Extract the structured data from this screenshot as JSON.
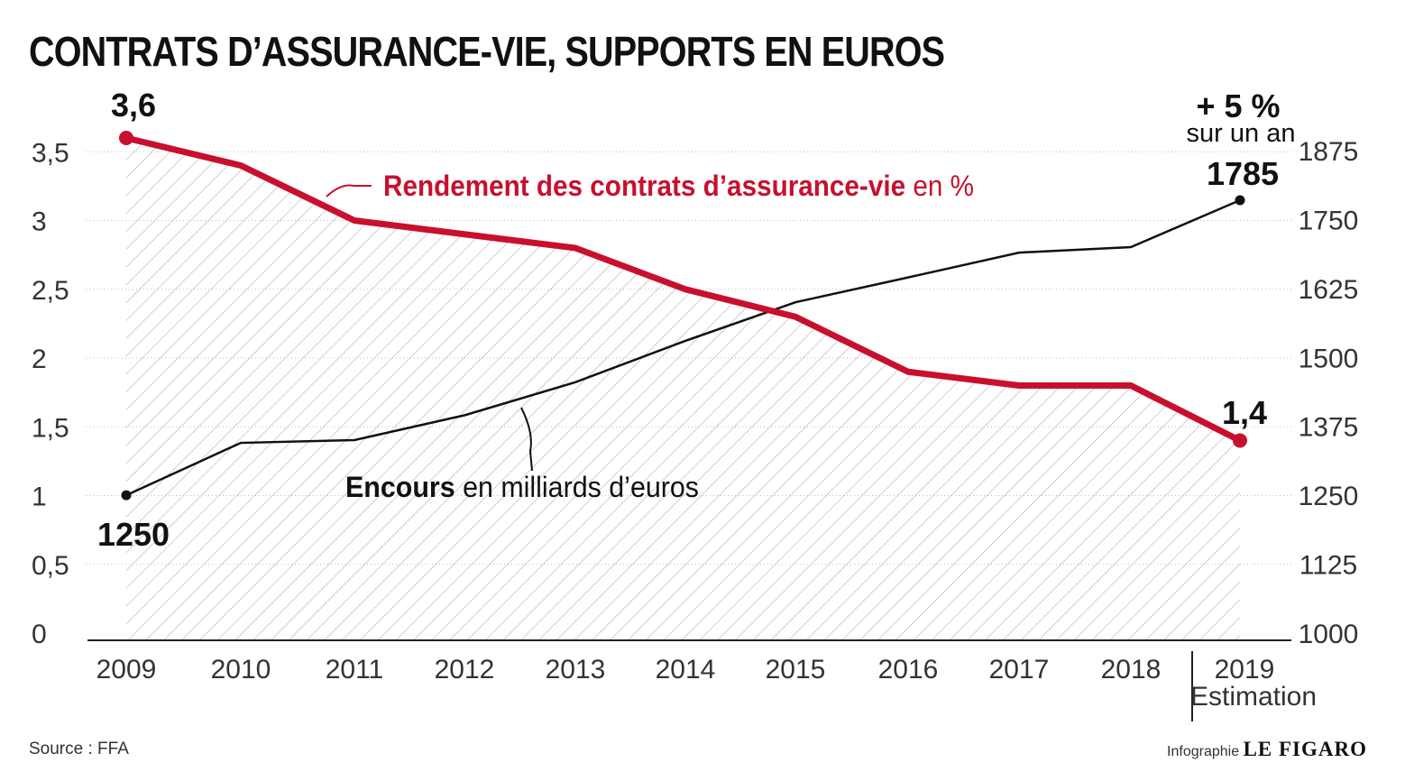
{
  "title": "CONTRATS D’ASSURANCE-VIE, SUPPORTS EN EUROS",
  "source": "Source : FFA",
  "credit": {
    "prefix": "Infographie",
    "brand": "LE FIGARO"
  },
  "colors": {
    "rendement": "#c8102e",
    "encours": "#111111",
    "hatch": "#b5b5b5",
    "grid": "#bdbdbd"
  },
  "chart_data": {
    "type": "line",
    "categories": [
      "2009",
      "2010",
      "2011",
      "2012",
      "2013",
      "2014",
      "2015",
      "2016",
      "2017",
      "2018",
      "2019"
    ],
    "category_notes": {
      "2019": "Estimation"
    },
    "y_left": {
      "ticks": [
        "0",
        "0,5",
        "1",
        "1,5",
        "2",
        "2,5",
        "3",
        "3,5"
      ],
      "ylim": [
        0,
        3.6
      ]
    },
    "y_right": {
      "ticks": [
        "1000",
        "1125",
        "1250",
        "1375",
        "1500",
        "1625",
        "1750",
        "1875"
      ],
      "ylim": [
        1000,
        1875
      ]
    },
    "grid": true,
    "series": [
      {
        "label_main": "Rendement des contrats d’assurance-vie",
        "label_unit": "en %",
        "axis": "left",
        "style": "thick red line with hatched area",
        "values": [
          3.6,
          3.4,
          3.0,
          2.9,
          2.8,
          2.5,
          2.3,
          1.9,
          1.8,
          1.8,
          1.4
        ]
      },
      {
        "label_main": "Encours",
        "label_unit": "en milliards d’euros",
        "axis": "right",
        "style": "thin black line",
        "values": [
          1250,
          1345,
          1350,
          1395,
          1455,
          1530,
          1600,
          1645,
          1690,
          1700,
          1785
        ]
      }
    ],
    "annotations": {
      "rendement_start": "3,6",
      "rendement_end": "1,4",
      "encours_start": "1250",
      "encours_end": "1785",
      "change": "+ 5 %",
      "change_note": "sur un an"
    }
  }
}
